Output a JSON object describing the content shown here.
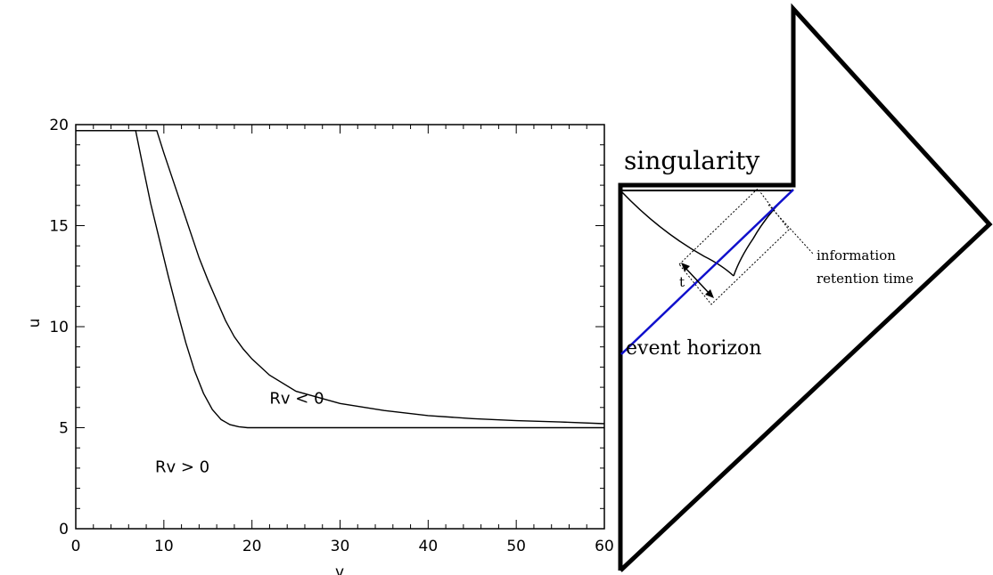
{
  "chart_data": {
    "type": "line",
    "title": "",
    "xlabel": "v",
    "ylabel": "u",
    "xlim": [
      0,
      60
    ],
    "ylim": [
      0,
      20
    ],
    "x_ticks": [
      0,
      10,
      20,
      30,
      40,
      50,
      60
    ],
    "y_ticks": [
      0,
      5,
      10,
      15,
      20
    ],
    "grid": false,
    "series": [
      {
        "x": [
          0,
          6.8,
          7.5,
          8.5,
          9.5,
          10.5,
          11.5,
          12.5,
          13.5,
          14.5,
          15.5,
          16.5,
          17.5,
          18.5,
          19.5,
          20,
          25,
          30,
          40,
          50,
          60
        ],
        "y": [
          19.7,
          19.7,
          18.2,
          16.1,
          14.3,
          12.5,
          10.8,
          9.2,
          7.8,
          6.7,
          5.9,
          5.4,
          5.15,
          5.05,
          5.0,
          5.0,
          5.0,
          5.0,
          5.0,
          5.0,
          5.0
        ]
      },
      {
        "x": [
          0,
          9.2,
          10,
          11,
          12,
          13,
          14,
          15,
          16,
          17,
          18,
          19,
          20,
          22,
          25,
          30,
          35,
          40,
          45,
          50,
          55,
          60
        ],
        "y": [
          19.7,
          19.7,
          18.6,
          17.3,
          16.0,
          14.7,
          13.4,
          12.3,
          11.3,
          10.3,
          9.5,
          8.9,
          8.4,
          7.6,
          6.8,
          6.2,
          5.85,
          5.6,
          5.45,
          5.35,
          5.28,
          5.2
        ]
      }
    ],
    "annotations": [
      {
        "text": "Rv < 0",
        "x": 22,
        "y": 6.2
      },
      {
        "text": "Rv > 0",
        "x": 9,
        "y": 2.8
      }
    ]
  },
  "diagram": {
    "labels": {
      "singularity": "singularity",
      "information": "information",
      "retention_time": "retention time",
      "t": "t",
      "event_horizon": "event horizon"
    },
    "colors": {
      "event_horizon": "#1010cc",
      "outline": "#000000"
    }
  }
}
